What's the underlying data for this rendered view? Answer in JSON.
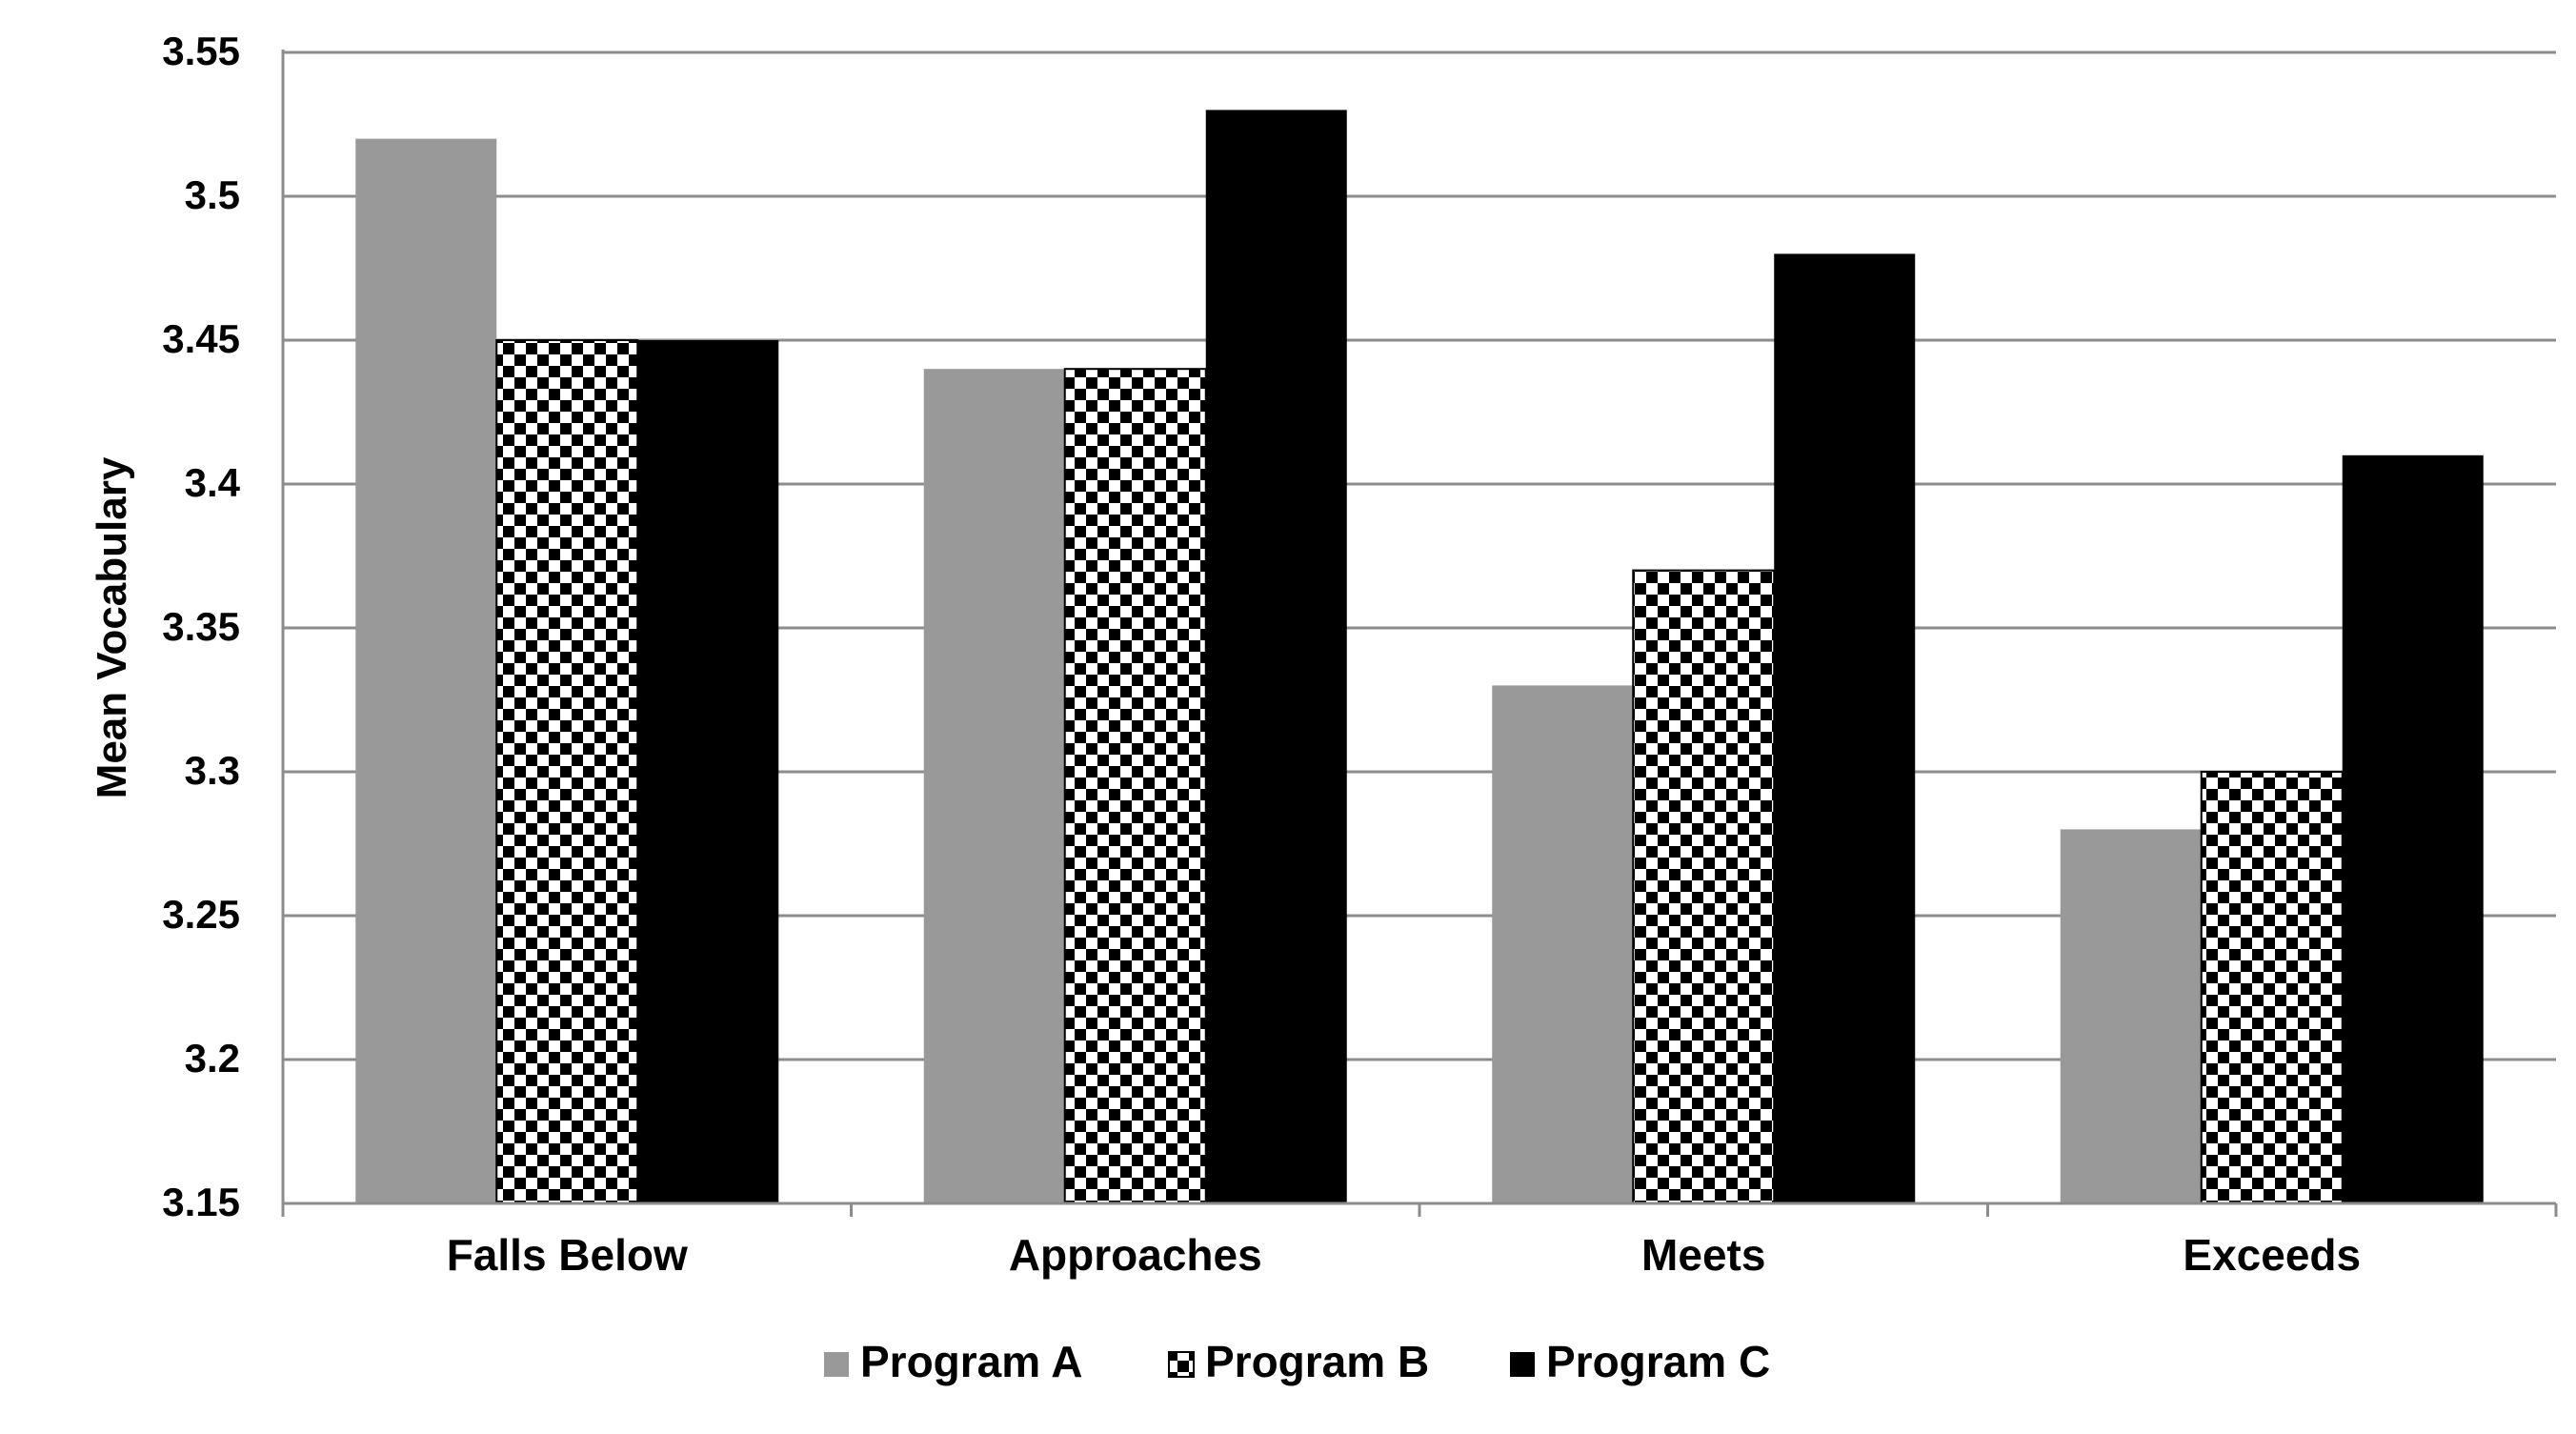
{
  "chart_data": {
    "type": "bar",
    "title": "",
    "xlabel": "",
    "ylabel": "Mean Vocabulary",
    "categories": [
      "Falls Below",
      "Approaches",
      "Meets",
      "Exceeds"
    ],
    "series": [
      {
        "name": "Program A",
        "values": [
          3.52,
          3.44,
          3.33,
          3.28
        ],
        "fill": "solid",
        "color": "#999999"
      },
      {
        "name": "Program B",
        "values": [
          3.45,
          3.44,
          3.37,
          3.3
        ],
        "fill": "checkerboard",
        "color": "#000000"
      },
      {
        "name": "Program C",
        "values": [
          3.45,
          3.53,
          3.48,
          3.41
        ],
        "fill": "solid",
        "color": "#000000"
      }
    ],
    "ylim": [
      3.15,
      3.55
    ],
    "yticks": [
      "3.15",
      "3.2",
      "3.25",
      "3.3",
      "3.35",
      "3.4",
      "3.45",
      "3.5",
      "3.55"
    ],
    "grid": true,
    "legend_position": "bottom-center"
  }
}
